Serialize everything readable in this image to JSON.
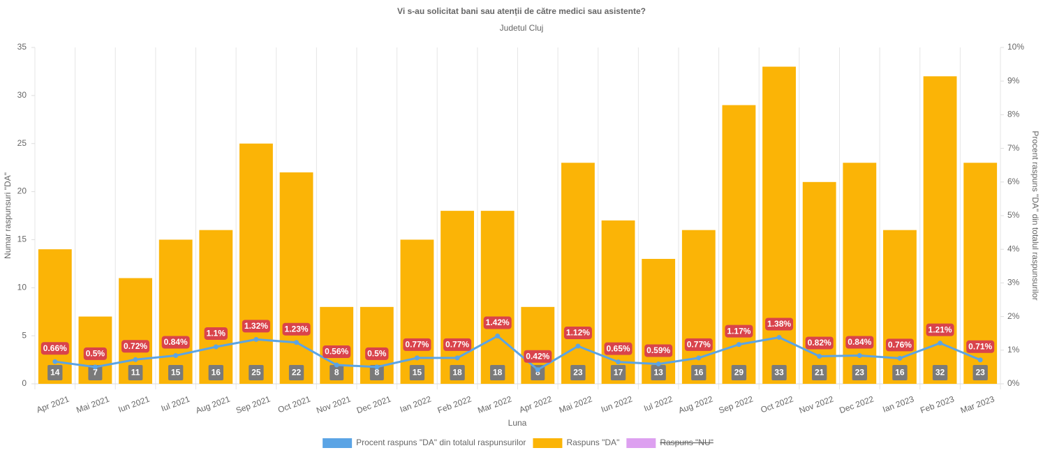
{
  "chart_data": {
    "type": "bar",
    "title": "Vi s-au solicitat bani sau atenții de către medici sau asistente?",
    "subtitle": "Judetul Cluj",
    "xlabel": "Luna",
    "ylabel": "Numar raspunsuri \"DA\"",
    "y2label": "Procent raspuns \"DA\" din totalul raspunsurilor",
    "categories": [
      "Apr 2021",
      "Mai 2021",
      "Iun 2021",
      "Iul 2021",
      "Aug 2021",
      "Sep 2021",
      "Oct 2021",
      "Nov 2021",
      "Dec 2021",
      "Ian 2022",
      "Feb 2022",
      "Mar 2022",
      "Apr 2022",
      "Mai 2022",
      "Iun 2022",
      "Iul 2022",
      "Aug 2022",
      "Sep 2022",
      "Oct 2022",
      "Nov 2022",
      "Dec 2022",
      "Ian 2023",
      "Feb 2023",
      "Mar 2023"
    ],
    "series": [
      {
        "name": "Procent raspuns \"DA\" din totalul raspunsurilor",
        "type": "line",
        "axis": "y2",
        "color": "#5ba4e5",
        "values": [
          0.66,
          0.5,
          0.72,
          0.84,
          1.1,
          1.32,
          1.23,
          0.56,
          0.5,
          0.77,
          0.77,
          1.42,
          0.42,
          1.12,
          0.65,
          0.59,
          0.77,
          1.17,
          1.38,
          0.82,
          0.84,
          0.76,
          1.21,
          0.71
        ],
        "value_labels": [
          "0.66%",
          "0.5%",
          "0.72%",
          "0.84%",
          "1.1%",
          "1.32%",
          "1.23%",
          "0.56%",
          "0.5%",
          "0.77%",
          "0.77%",
          "1.42%",
          "0.42%",
          "1.12%",
          "0.65%",
          "0.59%",
          "0.77%",
          "1.17%",
          "1.38%",
          "0.82%",
          "0.84%",
          "0.76%",
          "1.21%",
          "0.71%"
        ]
      },
      {
        "name": "Raspuns \"DA\"",
        "type": "bar",
        "color": "#fbb406",
        "values": [
          14,
          7,
          11,
          15,
          16,
          25,
          22,
          8,
          8,
          15,
          18,
          18,
          8,
          23,
          17,
          13,
          16,
          29,
          33,
          21,
          23,
          16,
          32,
          23
        ]
      },
      {
        "name": "Raspuns \"NU\"",
        "type": "bar",
        "color": "#dda0f0",
        "hidden": true,
        "values": [
          null,
          null,
          null,
          null,
          null,
          null,
          null,
          null,
          null,
          null,
          null,
          null,
          null,
          null,
          null,
          null,
          null,
          null,
          null,
          null,
          null,
          null,
          null,
          null
        ]
      }
    ],
    "ylim": [
      0,
      35
    ],
    "yticks": [
      0,
      5,
      10,
      15,
      20,
      25,
      30,
      35
    ],
    "y2lim": [
      0,
      10
    ],
    "y2ticks": [
      {
        "value": 0,
        "label": "0%"
      },
      {
        "value": 1,
        "label": "1%"
      },
      {
        "value": 2,
        "label": "2%"
      },
      {
        "value": 3,
        "label": "3%"
      },
      {
        "value": 4,
        "label": "4%"
      },
      {
        "value": 5,
        "label": "5%"
      },
      {
        "value": 6,
        "label": "6%"
      },
      {
        "value": 7,
        "label": "7%"
      },
      {
        "value": 8,
        "label": "8%"
      },
      {
        "value": 9,
        "label": "9%"
      },
      {
        "value": 10,
        "label": "10%"
      }
    ],
    "grid": "x",
    "legend": "bottom"
  }
}
